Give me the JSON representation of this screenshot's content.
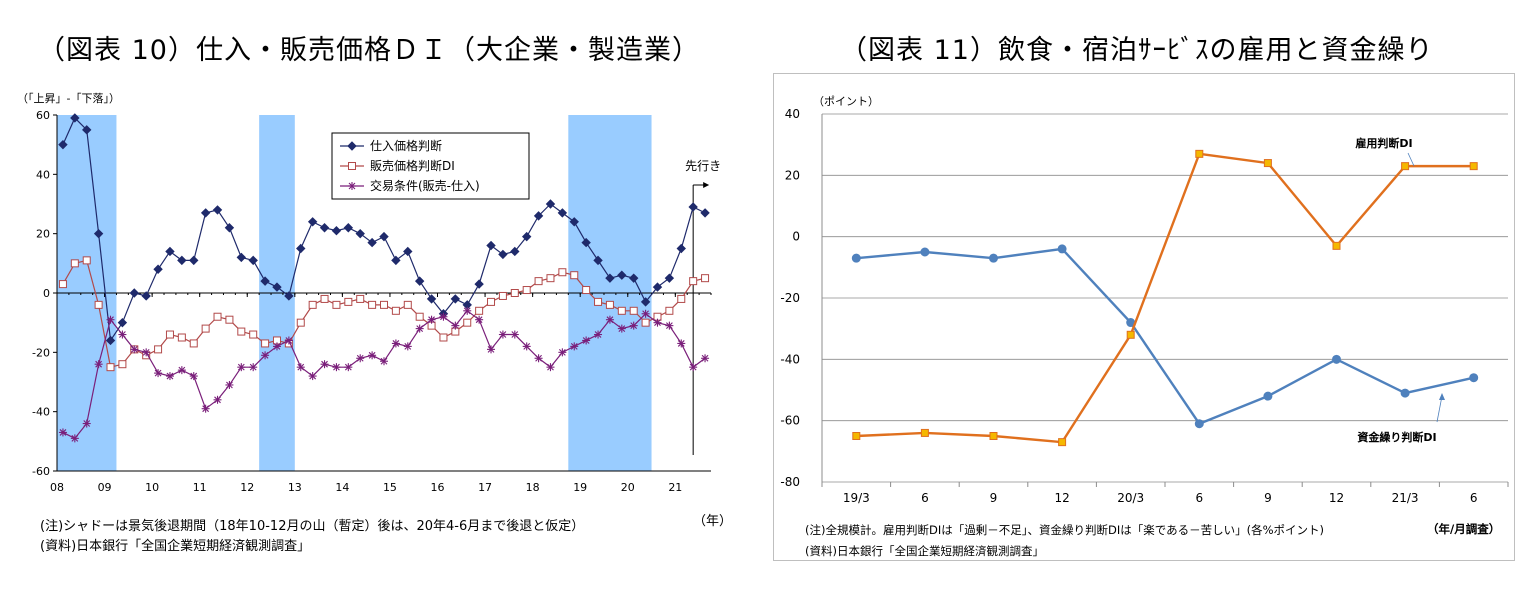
{
  "chart_data": [
    {
      "type": "line",
      "title": "（図表 10）仕入・販売価格ＤＩ（大企業・製造業）",
      "ylabel": "（「上昇」-「下落」）",
      "xlabel": "（年）",
      "ylim": [
        -60,
        60
      ],
      "yticks": [
        "60",
        "40",
        "20",
        "0",
        "-20",
        "-40",
        "-60"
      ],
      "x_tick_labels": [
        "08",
        "09",
        "10",
        "11",
        "12",
        "13",
        "14",
        "15",
        "16",
        "17",
        "18",
        "19",
        "20",
        "21"
      ],
      "x_start_year": 2008,
      "shaded_periods": [
        [
          2008.0,
          2009.25
        ],
        [
          2012.25,
          2013.0
        ],
        [
          2018.75,
          2020.5
        ]
      ],
      "forecast_label": "先行き",
      "legend": {
        "position": "top-center"
      },
      "series": [
        {
          "name": "仕入価格判断",
          "color": "#1f2a6b",
          "marker": "diamond",
          "values": [
            50,
            59,
            55,
            20,
            -16,
            -10,
            0,
            -1,
            8,
            14,
            11,
            11,
            27,
            28,
            22,
            12,
            11,
            4,
            2,
            -1,
            15,
            24,
            22,
            21,
            22,
            20,
            17,
            19,
            11,
            14,
            4,
            -2,
            -7,
            -2,
            -4,
            3,
            16,
            13,
            14,
            19,
            26,
            30,
            27,
            24,
            17,
            11,
            5,
            6,
            5,
            -3,
            2,
            5,
            15,
            29,
            27
          ]
        },
        {
          "name": "販売価格判断DI",
          "color": "#b24a4a",
          "marker": "square",
          "values": [
            3,
            10,
            11,
            -4,
            -25,
            -24,
            -19,
            -21,
            -19,
            -14,
            -15,
            -17,
            -12,
            -8,
            -9,
            -13,
            -14,
            -17,
            -16,
            -17,
            -10,
            -4,
            -2,
            -4,
            -3,
            -2,
            -4,
            -4,
            -6,
            -4,
            -8,
            -11,
            -15,
            -13,
            -10,
            -6,
            -3,
            -1,
            0,
            1,
            4,
            5,
            7,
            6,
            1,
            -3,
            -4,
            -6,
            -6,
            -10,
            -8,
            -6,
            -2,
            4,
            5
          ]
        },
        {
          "name": "交易条件(販売-仕入)",
          "color": "#7a1f7a",
          "marker": "star",
          "values": [
            -47,
            -49,
            -44,
            -24,
            -9,
            -14,
            -19,
            -20,
            -27,
            -28,
            -26,
            -28,
            -39,
            -36,
            -31,
            -25,
            -25,
            -21,
            -18,
            -16,
            -25,
            -28,
            -24,
            -25,
            -25,
            -22,
            -21,
            -23,
            -17,
            -18,
            -12,
            -9,
            -8,
            -11,
            -6,
            -9,
            -19,
            -14,
            -14,
            -18,
            -22,
            -25,
            -20,
            -18,
            -16,
            -14,
            -9,
            -12,
            -11,
            -7,
            -10,
            -11,
            -17,
            -25,
            -22
          ]
        }
      ],
      "notes": [
        "(注)シャドーは景気後退期間（18年10-12月の山（暫定）後は、20年4-6月まで後退と仮定）",
        "(資料)日本銀行「全国企業短期経済観測調査」"
      ]
    },
    {
      "type": "line",
      "title": "（図表 11）飲食・宿泊ｻｰﾋﾞｽの雇用と資金繰り",
      "ylabel": "（ポイント）",
      "xlabel": "（年/月調査）",
      "ylim": [
        -80,
        40
      ],
      "yticks": [
        "40",
        "20",
        "0",
        "-20",
        "-40",
        "-60",
        "-80"
      ],
      "categories": [
        "19/3",
        "6",
        "9",
        "12",
        "20/3",
        "6",
        "9",
        "12",
        "21/3",
        "6"
      ],
      "series": [
        {
          "name": "資金繰り判断DI",
          "color": "#4f81bd",
          "marker": "circle",
          "values": [
            -7,
            -5,
            -7,
            -4,
            -28,
            -61,
            -52,
            -40,
            -51,
            -46
          ]
        },
        {
          "name": "雇用判断DI",
          "color": "#e0701e",
          "marker": "square",
          "marker_fill": "#f5b800",
          "values": [
            -65,
            -64,
            -65,
            -67,
            -32,
            27,
            24,
            -3,
            23,
            23
          ]
        }
      ],
      "notes": [
        "(注)全規模計。雇用判断DIは「過剰－不足」、資金繰り判断DIは「楽である－苦しい」(各%ポイント)",
        "(資料)日本銀行「全国企業短期経済観測調査」"
      ]
    }
  ]
}
